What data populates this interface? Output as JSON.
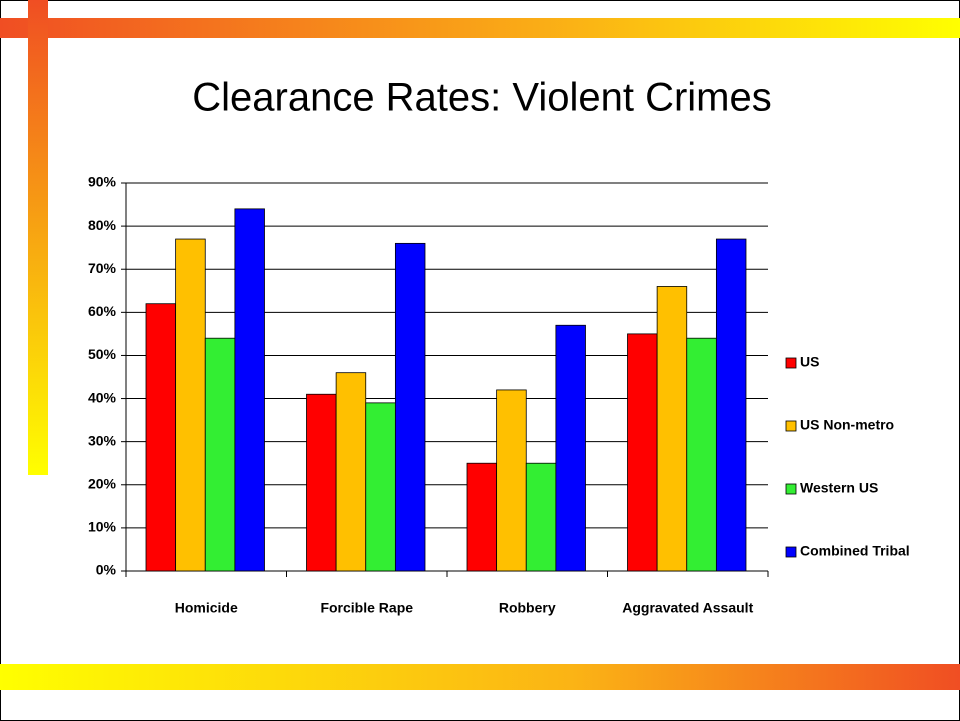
{
  "chart_data": {
    "type": "bar",
    "title": "Clearance Rates: Violent Crimes",
    "categories": [
      "Homicide",
      "Forcible Rape",
      "Robbery",
      "Aggravated Assault"
    ],
    "series": [
      {
        "name": "US",
        "color": "#ff0000",
        "values": [
          62,
          41,
          25,
          55
        ]
      },
      {
        "name": "US Non-metro",
        "color": "#ffc000",
        "values": [
          77,
          46,
          42,
          66
        ]
      },
      {
        "name": "Western US",
        "color": "#33ee33",
        "values": [
          54,
          39,
          25,
          54
        ]
      },
      {
        "name": "Combined Tribal",
        "color": "#0000ff",
        "values": [
          84,
          76,
          57,
          77
        ]
      }
    ],
    "ylim": [
      0,
      90
    ],
    "yticks": [
      {
        "value": 0,
        "label": "0%"
      },
      {
        "value": 10,
        "label": "10%"
      },
      {
        "value": 20,
        "label": "20%"
      },
      {
        "value": 30,
        "label": "30%"
      },
      {
        "value": 40,
        "label": "40%"
      },
      {
        "value": 50,
        "label": "50%"
      },
      {
        "value": 60,
        "label": "60%"
      },
      {
        "value": 70,
        "label": "70%"
      },
      {
        "value": 80,
        "label": "80%"
      },
      {
        "value": 90,
        "label": "90%"
      }
    ],
    "grid": true,
    "legend": "right"
  }
}
